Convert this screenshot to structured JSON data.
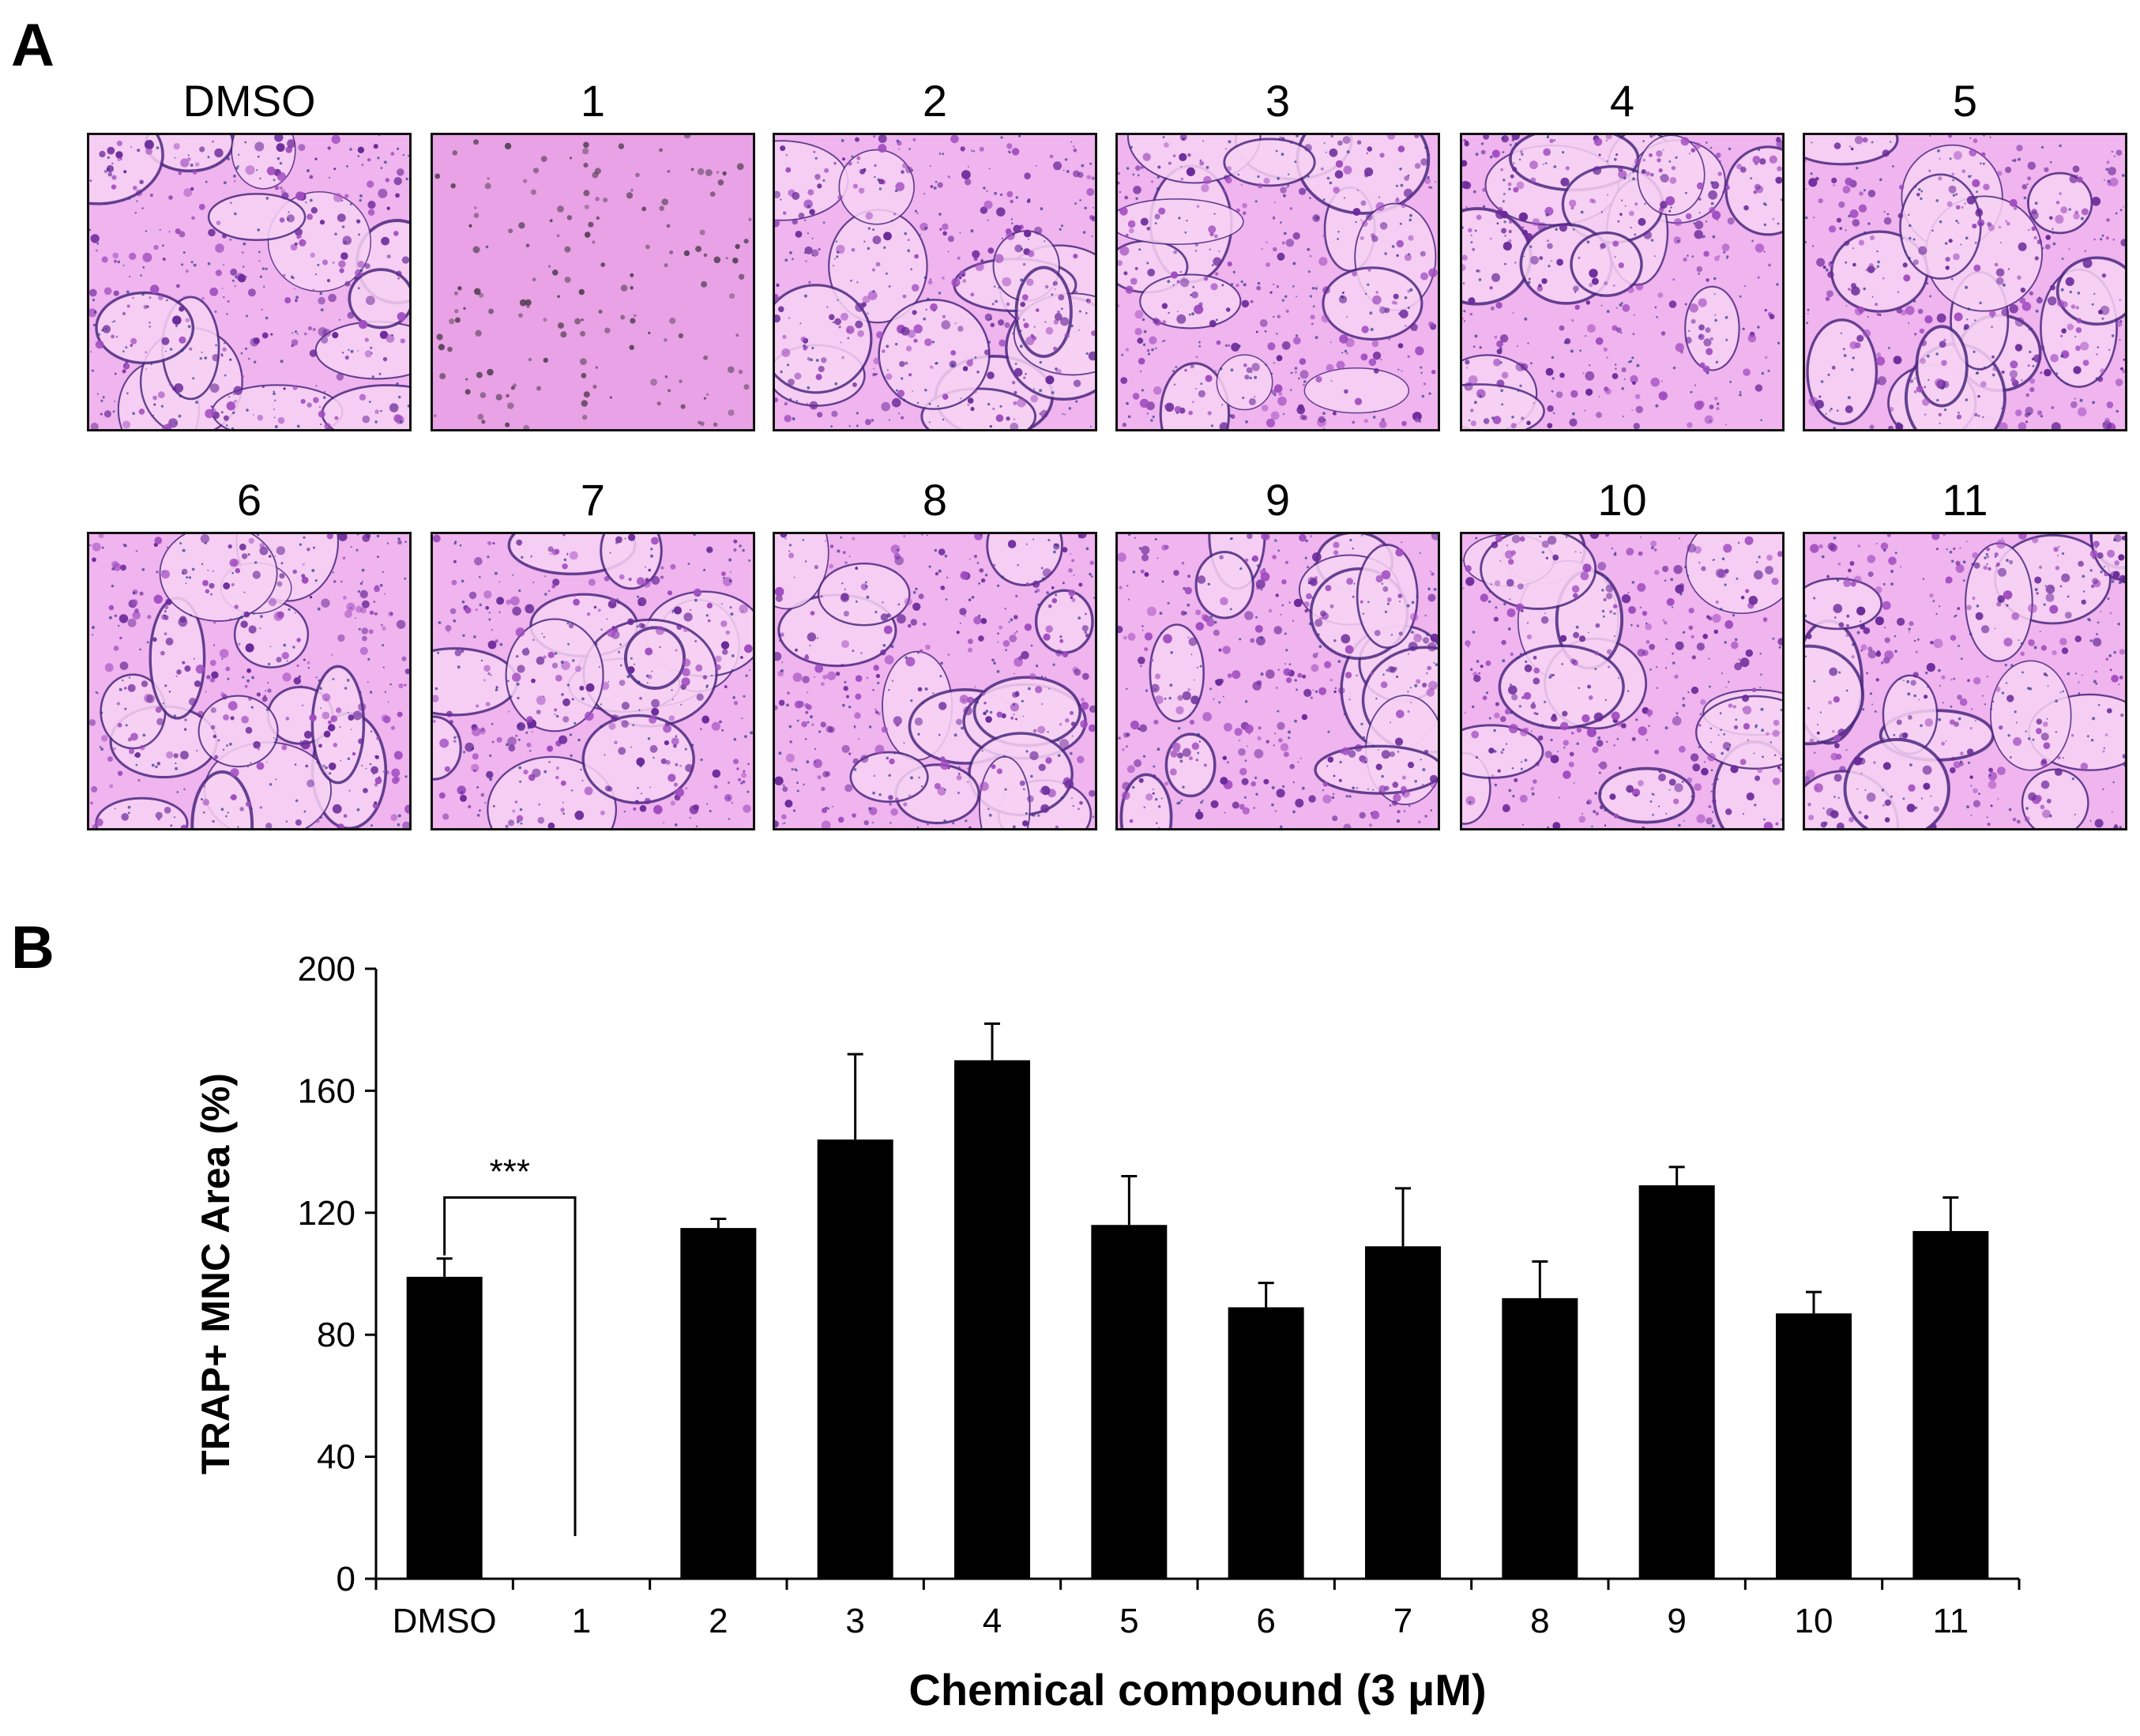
{
  "panels": {
    "a_label": "A",
    "b_label": "B"
  },
  "micrographs": [
    {
      "label": "DMSO",
      "stain": "dense"
    },
    {
      "label": "1",
      "stain": "sparse"
    },
    {
      "label": "2",
      "stain": "dense"
    },
    {
      "label": "3",
      "stain": "dense"
    },
    {
      "label": "4",
      "stain": "dense"
    },
    {
      "label": "5",
      "stain": "dense"
    },
    {
      "label": "6",
      "stain": "dense"
    },
    {
      "label": "7",
      "stain": "dense"
    },
    {
      "label": "8",
      "stain": "dense"
    },
    {
      "label": "9",
      "stain": "dense"
    },
    {
      "label": "10",
      "stain": "dense"
    },
    {
      "label": "11",
      "stain": "dense"
    }
  ],
  "colors": {
    "bar": "#000000",
    "stain_background": "#f0b4ee",
    "stain_sparse_background": "#e9a2e6",
    "stain_dark": "#6a2a9a",
    "stain_mid": "#a04cc0",
    "stain_outline": "#4b2a80"
  },
  "chart_data": {
    "type": "bar",
    "categories": [
      "DMSO",
      "1",
      "2",
      "3",
      "4",
      "5",
      "6",
      "7",
      "8",
      "9",
      "10",
      "11"
    ],
    "values": [
      99,
      0,
      115,
      144,
      170,
      116,
      89,
      109,
      92,
      129,
      87,
      114
    ],
    "errors": [
      6,
      0,
      3,
      28,
      12,
      16,
      8,
      19,
      12,
      6,
      7,
      11
    ],
    "title": "",
    "xlabel": "Chemical compound (3 μM)",
    "ylabel": "TRAP+ MNC Area (%)",
    "ylim": [
      0,
      200
    ],
    "yticks": [
      0,
      40,
      80,
      120,
      160,
      200
    ],
    "grid": false,
    "legend": "none",
    "annotations": [
      {
        "text": "***",
        "type": "significance-bracket",
        "from": "DMSO",
        "to": "1",
        "y": 125
      }
    ]
  }
}
